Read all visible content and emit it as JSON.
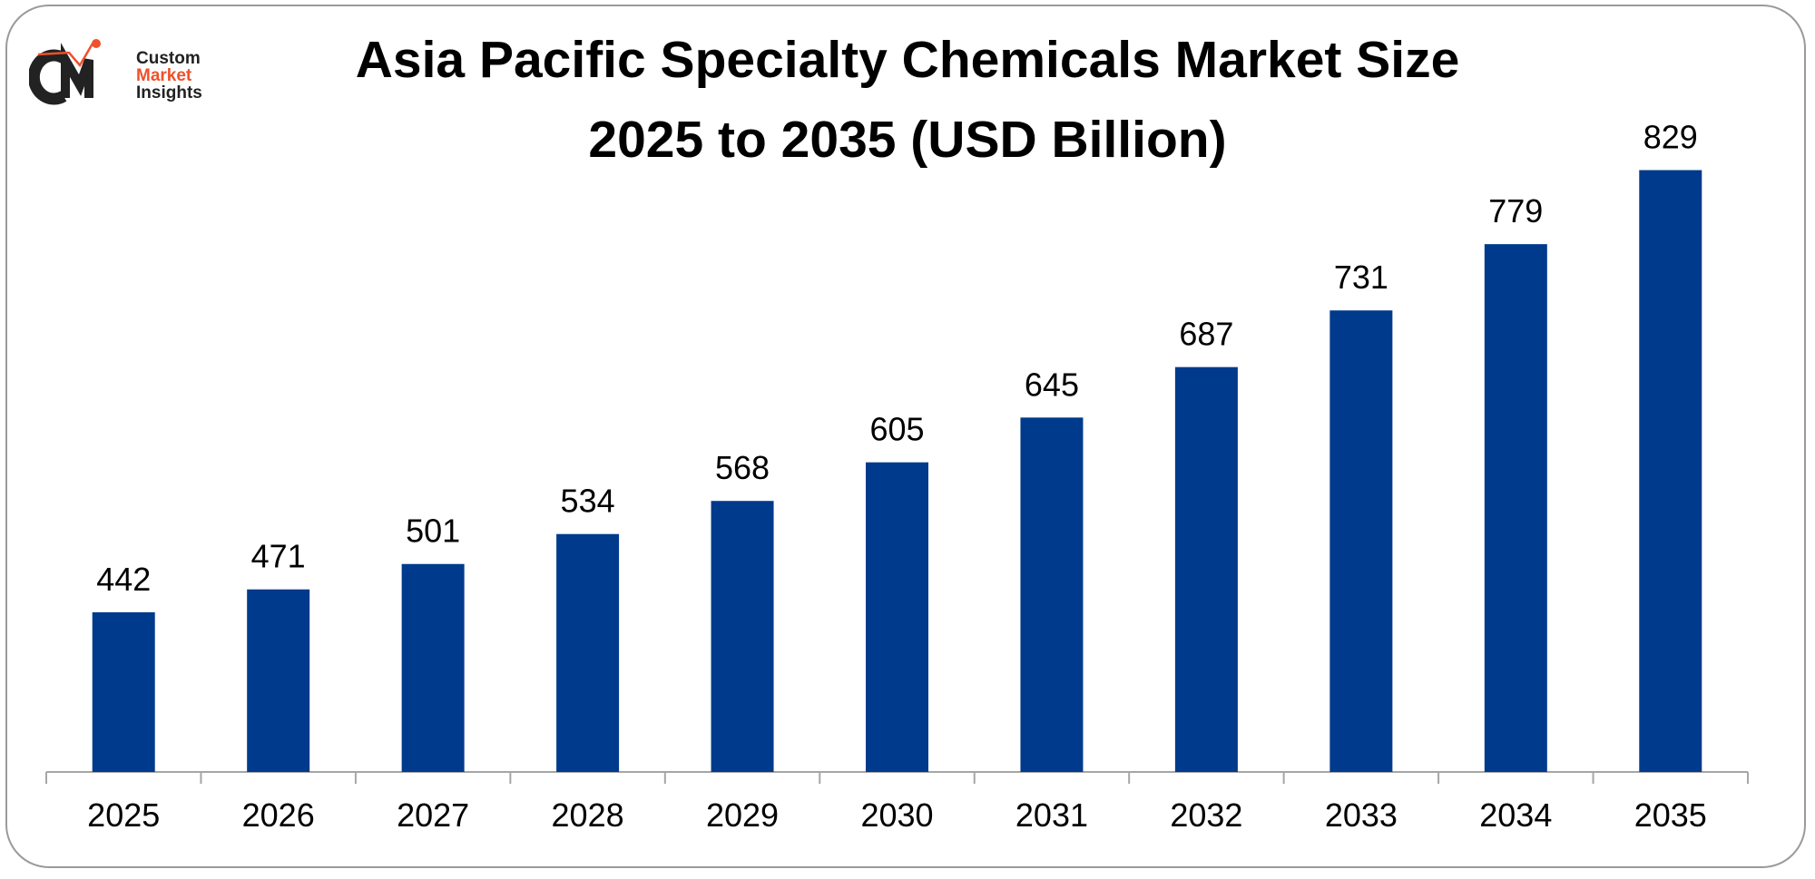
{
  "logo": {
    "initials": "CMI",
    "line1": "Custom",
    "line2": "Market",
    "line3": "Insights",
    "colors": {
      "dark": "#222222",
      "accent": "#f0502a"
    }
  },
  "chart_data": {
    "type": "bar",
    "title": [
      "Asia Pacific Specialty Chemicals Market Size",
      "2025 to 2035 (USD Billion)"
    ],
    "categories": [
      "2025",
      "2026",
      "2027",
      "2028",
      "2029",
      "2030",
      "2031",
      "2032",
      "2033",
      "2034",
      "2035"
    ],
    "values": [
      442,
      471,
      501,
      534,
      568,
      605,
      645,
      687,
      731,
      779,
      829
    ],
    "data_labels": true,
    "bar_color": "#003a8c",
    "xlabel": "",
    "ylabel": "",
    "grid": false,
    "legend": "none"
  }
}
